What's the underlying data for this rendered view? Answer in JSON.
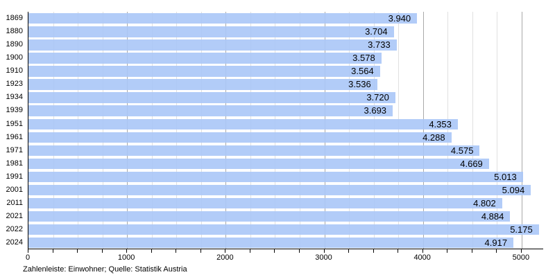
{
  "chart_data": {
    "type": "bar",
    "orientation": "horizontal",
    "title": "",
    "xlabel": "",
    "ylabel": "",
    "categories": [
      "1869",
      "1880",
      "1890",
      "1900",
      "1910",
      "1923",
      "1934",
      "1939",
      "1951",
      "1961",
      "1971",
      "1981",
      "1991",
      "2001",
      "2011",
      "2021",
      "2022",
      "2024"
    ],
    "values": [
      3940,
      3704,
      3733,
      3578,
      3564,
      3536,
      3720,
      3693,
      4353,
      4288,
      4575,
      4669,
      5013,
      5094,
      4802,
      4884,
      5175,
      4917
    ],
    "value_labels": [
      "3.940",
      "3.704",
      "3.733",
      "3.578",
      "3.564",
      "3.536",
      "3.720",
      "3.693",
      "4.353",
      "4.288",
      "4.575",
      "4.669",
      "5.013",
      "5.094",
      "4.802",
      "4.884",
      "5.175",
      "4.917"
    ],
    "xlim": [
      0,
      5226
    ],
    "x_ticks_major": [
      0,
      1000,
      2000,
      3000,
      4000,
      5000
    ],
    "x_tick_labels": [
      "0",
      "1000",
      "2000",
      "3000",
      "4000",
      "5000"
    ],
    "x_tick_minor_step": 250,
    "grid": "vertical, minor every 250, major every 1000",
    "legend": null
  },
  "caption": "Zahlenleiste: Einwohner; Quelle: Statistik Austria",
  "colors": {
    "bar": "#aac6f7",
    "grid_minor": "#e0e0e0",
    "grid_major": "#a9a9a9",
    "axis": "#000000",
    "text": "#000000",
    "background": "#ffffff"
  }
}
